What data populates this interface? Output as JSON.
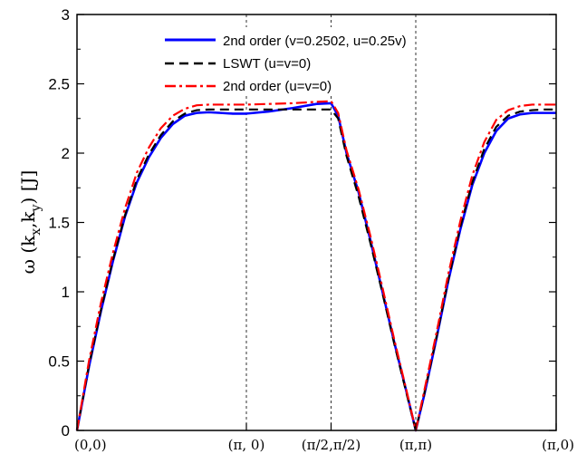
{
  "chart_data": {
    "type": "line",
    "ylabel": "ω (k_x,k_y) [J]",
    "ylabel_parts": {
      "main": "ω (k",
      "sub1": "x",
      "mid": ",k",
      "sub2": "y",
      "end": ") [J]"
    },
    "ylim": [
      0,
      3
    ],
    "yticks": [
      0,
      0.5,
      1,
      1.5,
      2,
      2.5,
      3
    ],
    "ytick_labels": [
      "0",
      "0.5",
      "1",
      "1.5",
      "2",
      "2.5",
      "3"
    ],
    "xlim": [
      0,
      4
    ],
    "xtick_positions": [
      0,
      1.414,
      2.121,
      2.828,
      4
    ],
    "xtick_labels": [
      "(0,0)",
      "(π, 0)",
      "(π/2,π/2)",
      "(π,π)",
      "(π,0)"
    ],
    "vlines": [
      1.414,
      2.121,
      2.828
    ],
    "grid": false,
    "legend_position": "top",
    "series": [
      {
        "name": "2nd order (v=0.2502, u=0.25v)",
        "color": "#0000ff",
        "style": "solid",
        "points": [
          [
            0,
            0
          ],
          [
            0.1,
            0.46
          ],
          [
            0.2,
            0.86
          ],
          [
            0.3,
            1.22
          ],
          [
            0.4,
            1.54
          ],
          [
            0.5,
            1.79
          ],
          [
            0.6,
            1.97
          ],
          [
            0.7,
            2.11
          ],
          [
            0.8,
            2.21
          ],
          [
            0.9,
            2.27
          ],
          [
            1.0,
            2.29
          ],
          [
            1.1,
            2.295
          ],
          [
            1.2,
            2.29
          ],
          [
            1.3,
            2.285
          ],
          [
            1.414,
            2.285
          ],
          [
            1.6,
            2.3
          ],
          [
            1.8,
            2.325
          ],
          [
            2.0,
            2.355
          ],
          [
            2.121,
            2.36
          ],
          [
            2.18,
            2.27
          ],
          [
            2.25,
            2.0
          ],
          [
            2.35,
            1.72
          ],
          [
            2.45,
            1.37
          ],
          [
            2.55,
            1.0
          ],
          [
            2.65,
            0.63
          ],
          [
            2.75,
            0.28
          ],
          [
            2.828,
            0.0
          ],
          [
            2.9,
            0.26
          ],
          [
            3.0,
            0.66
          ],
          [
            3.1,
            1.08
          ],
          [
            3.2,
            1.45
          ],
          [
            3.3,
            1.77
          ],
          [
            3.4,
            2.0
          ],
          [
            3.5,
            2.16
          ],
          [
            3.6,
            2.25
          ],
          [
            3.7,
            2.28
          ],
          [
            3.8,
            2.29
          ],
          [
            3.9,
            2.29
          ],
          [
            4.0,
            2.29
          ]
        ]
      },
      {
        "name": "LSWT (u=v=0)",
        "color": "#000000",
        "style": "dashed",
        "points": [
          [
            0,
            0
          ],
          [
            0.1,
            0.47
          ],
          [
            0.2,
            0.87
          ],
          [
            0.3,
            1.23
          ],
          [
            0.4,
            1.55
          ],
          [
            0.5,
            1.81
          ],
          [
            0.6,
            1.99
          ],
          [
            0.7,
            2.13
          ],
          [
            0.8,
            2.23
          ],
          [
            0.9,
            2.285
          ],
          [
            1.0,
            2.31
          ],
          [
            1.1,
            2.315
          ],
          [
            1.2,
            2.315
          ],
          [
            1.3,
            2.315
          ],
          [
            1.414,
            2.315
          ],
          [
            1.6,
            2.315
          ],
          [
            1.8,
            2.315
          ],
          [
            2.0,
            2.315
          ],
          [
            2.121,
            2.315
          ],
          [
            2.18,
            2.25
          ],
          [
            2.25,
            1.98
          ],
          [
            2.35,
            1.69
          ],
          [
            2.45,
            1.35
          ],
          [
            2.55,
            0.99
          ],
          [
            2.65,
            0.62
          ],
          [
            2.75,
            0.27
          ],
          [
            2.828,
            0.0
          ],
          [
            2.9,
            0.27
          ],
          [
            3.0,
            0.67
          ],
          [
            3.1,
            1.09
          ],
          [
            3.2,
            1.47
          ],
          [
            3.3,
            1.79
          ],
          [
            3.4,
            2.03
          ],
          [
            3.5,
            2.19
          ],
          [
            3.6,
            2.27
          ],
          [
            3.7,
            2.3
          ],
          [
            3.8,
            2.31
          ],
          [
            3.9,
            2.315
          ],
          [
            4.0,
            2.315
          ]
        ]
      },
      {
        "name": "2nd order (u=v=0)",
        "color": "#ff0000",
        "style": "dashdot",
        "points": [
          [
            0,
            0
          ],
          [
            0.1,
            0.5
          ],
          [
            0.2,
            0.92
          ],
          [
            0.3,
            1.28
          ],
          [
            0.4,
            1.6
          ],
          [
            0.5,
            1.86
          ],
          [
            0.6,
            2.04
          ],
          [
            0.7,
            2.18
          ],
          [
            0.8,
            2.27
          ],
          [
            0.9,
            2.32
          ],
          [
            1.0,
            2.345
          ],
          [
            1.1,
            2.35
          ],
          [
            1.2,
            2.35
          ],
          [
            1.3,
            2.35
          ],
          [
            1.414,
            2.35
          ],
          [
            1.6,
            2.355
          ],
          [
            1.8,
            2.36
          ],
          [
            2.0,
            2.37
          ],
          [
            2.121,
            2.375
          ],
          [
            2.18,
            2.29
          ],
          [
            2.25,
            2.02
          ],
          [
            2.35,
            1.74
          ],
          [
            2.45,
            1.4
          ],
          [
            2.55,
            1.03
          ],
          [
            2.65,
            0.65
          ],
          [
            2.75,
            0.29
          ],
          [
            2.828,
            0.0
          ],
          [
            2.9,
            0.29
          ],
          [
            3.0,
            0.7
          ],
          [
            3.1,
            1.13
          ],
          [
            3.2,
            1.51
          ],
          [
            3.3,
            1.84
          ],
          [
            3.4,
            2.08
          ],
          [
            3.5,
            2.24
          ],
          [
            3.6,
            2.31
          ],
          [
            3.7,
            2.34
          ],
          [
            3.8,
            2.35
          ],
          [
            3.9,
            2.35
          ],
          [
            4.0,
            2.35
          ]
        ]
      }
    ]
  }
}
